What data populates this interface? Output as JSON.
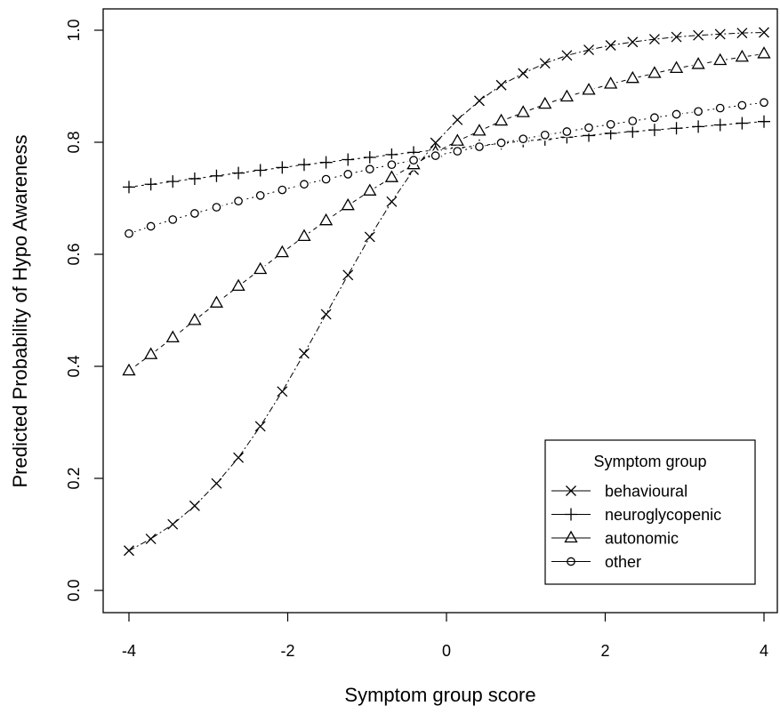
{
  "chart_data": {
    "type": "line",
    "title": "",
    "xlabel": "Symptom group score",
    "ylabel": "Predicted Probability of Hypo Awareness",
    "xlim": [
      -4,
      4
    ],
    "ylim": [
      0.0,
      1.0
    ],
    "xticks": [
      "-4",
      "-2",
      "0",
      "2",
      "4"
    ],
    "yticks": [
      "0.0",
      "0.2",
      "0.4",
      "0.6",
      "0.8",
      "1.0"
    ],
    "grid": false,
    "legend": {
      "title": "Symptom group",
      "position": "bottom-right"
    },
    "x": [
      -4.0,
      -3.724,
      -3.448,
      -3.172,
      -2.897,
      -2.621,
      -2.345,
      -2.069,
      -1.793,
      -1.517,
      -1.241,
      -0.966,
      -0.69,
      -0.414,
      -0.138,
      0.138,
      0.414,
      0.69,
      0.966,
      1.241,
      1.517,
      1.793,
      2.069,
      2.345,
      2.621,
      2.897,
      3.172,
      3.448,
      3.724,
      4.0
    ],
    "series": [
      {
        "name": "behavioural",
        "marker": "x",
        "dash": "7,3,2,3",
        "values": [
          0.071,
          0.092,
          0.118,
          0.151,
          0.191,
          0.237,
          0.293,
          0.355,
          0.423,
          0.493,
          0.563,
          0.631,
          0.694,
          0.751,
          0.799,
          0.84,
          0.874,
          0.902,
          0.923,
          0.941,
          0.955,
          0.965,
          0.973,
          0.979,
          0.984,
          0.988,
          0.991,
          0.993,
          0.995,
          0.996
        ]
      },
      {
        "name": "neuroglycopenic",
        "marker": "plus",
        "dash": "3,4",
        "values": [
          0.72,
          0.725,
          0.73,
          0.735,
          0.74,
          0.745,
          0.75,
          0.755,
          0.76,
          0.764,
          0.769,
          0.773,
          0.778,
          0.782,
          0.786,
          0.79,
          0.794,
          0.798,
          0.802,
          0.805,
          0.809,
          0.812,
          0.816,
          0.819,
          0.822,
          0.825,
          0.828,
          0.831,
          0.834,
          0.837
        ]
      },
      {
        "name": "autonomic",
        "marker": "triangle",
        "dash": "5,4",
        "values": [
          0.392,
          0.421,
          0.451,
          0.482,
          0.513,
          0.543,
          0.573,
          0.603,
          0.632,
          0.66,
          0.687,
          0.713,
          0.737,
          0.76,
          0.782,
          0.802,
          0.82,
          0.838,
          0.853,
          0.868,
          0.881,
          0.893,
          0.904,
          0.914,
          0.923,
          0.932,
          0.939,
          0.946,
          0.952,
          0.958
        ]
      },
      {
        "name": "other",
        "marker": "circle",
        "dash": "2,4",
        "values": [
          0.637,
          0.65,
          0.662,
          0.673,
          0.684,
          0.695,
          0.705,
          0.715,
          0.725,
          0.734,
          0.743,
          0.752,
          0.76,
          0.768,
          0.776,
          0.784,
          0.792,
          0.799,
          0.806,
          0.813,
          0.819,
          0.826,
          0.832,
          0.838,
          0.844,
          0.85,
          0.855,
          0.861,
          0.866,
          0.871
        ]
      }
    ]
  }
}
